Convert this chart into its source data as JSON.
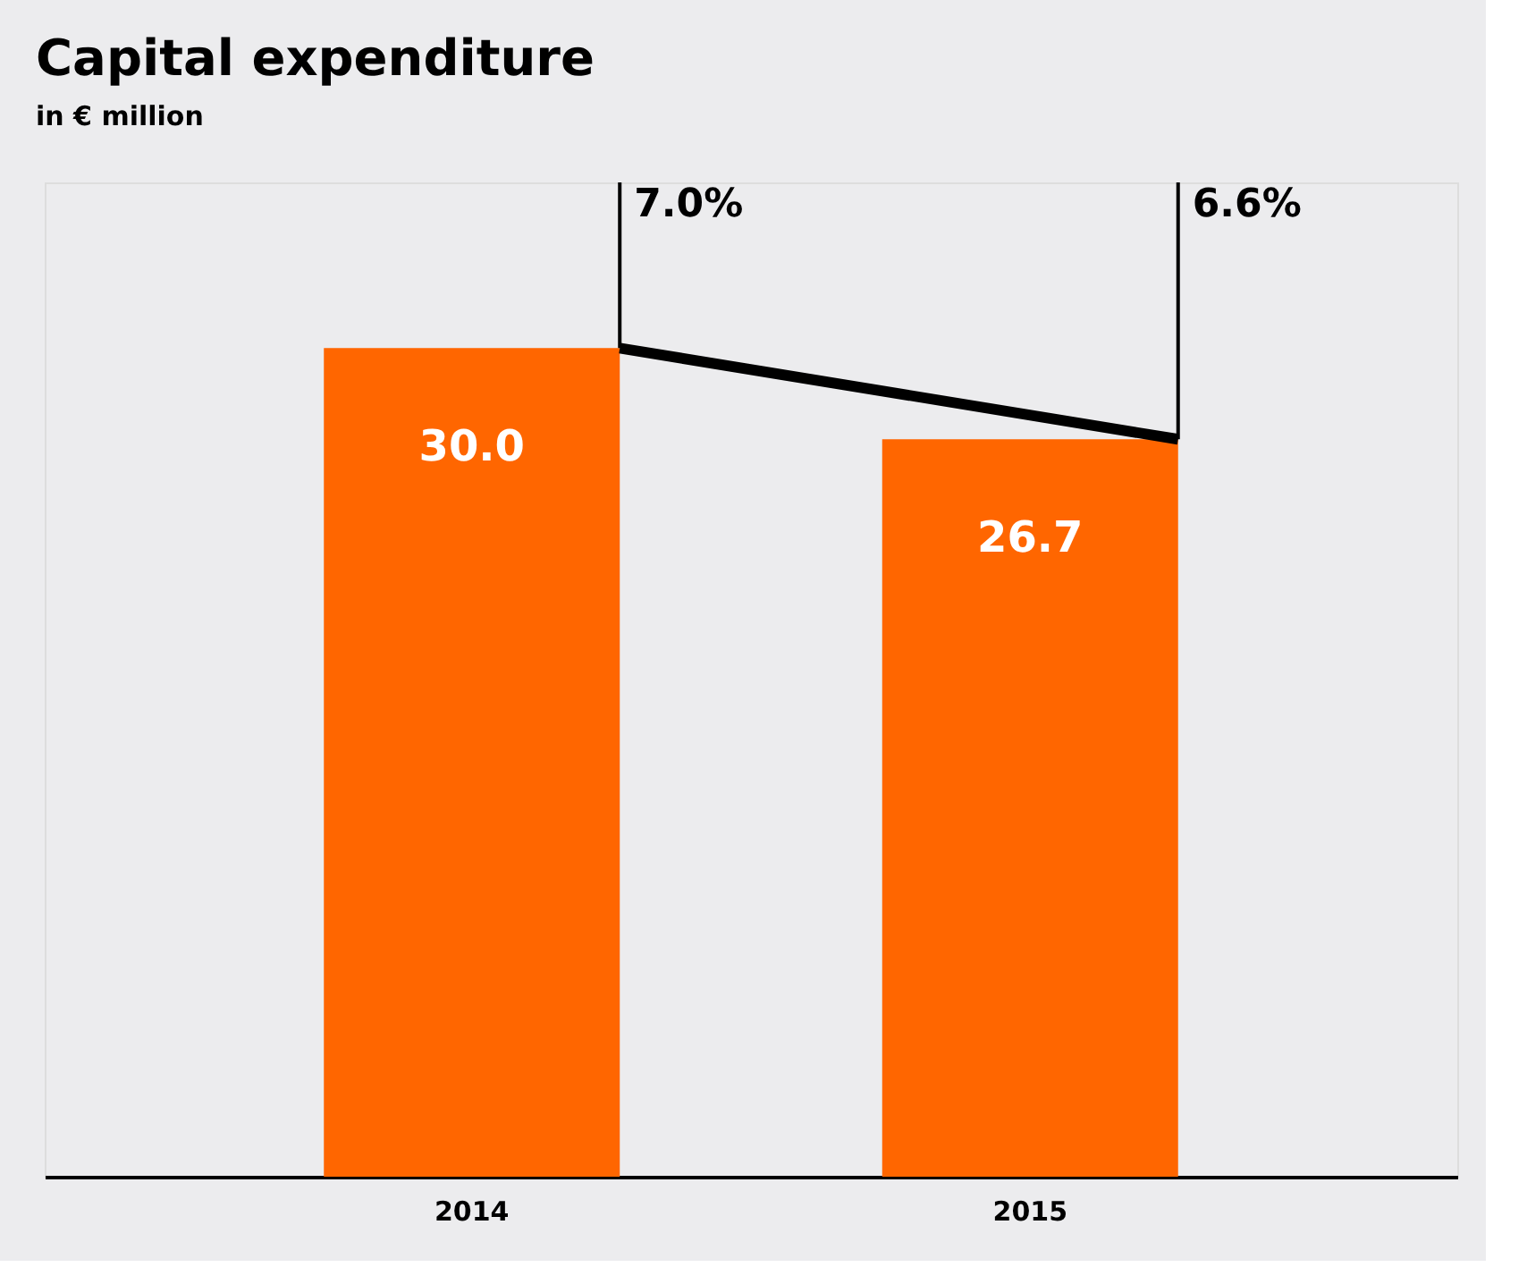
{
  "chart_data": {
    "type": "bar",
    "title": "Capital expenditure",
    "subtitle": "in € million",
    "categories": [
      "2014",
      "2015"
    ],
    "series": [
      {
        "color": "#ff6600",
        "values": [
          30.0,
          26.7
        ],
        "value_labels": [
          "30.0",
          "26.7"
        ]
      },
      {
        "type": "line",
        "color": "#000000",
        "values": [
          30.0,
          26.7
        ]
      }
    ],
    "annotations": [
      "7.0%",
      "6.6%"
    ],
    "ylim": [
      0,
      36
    ],
    "tick_labels": "x",
    "grid": false
  }
}
